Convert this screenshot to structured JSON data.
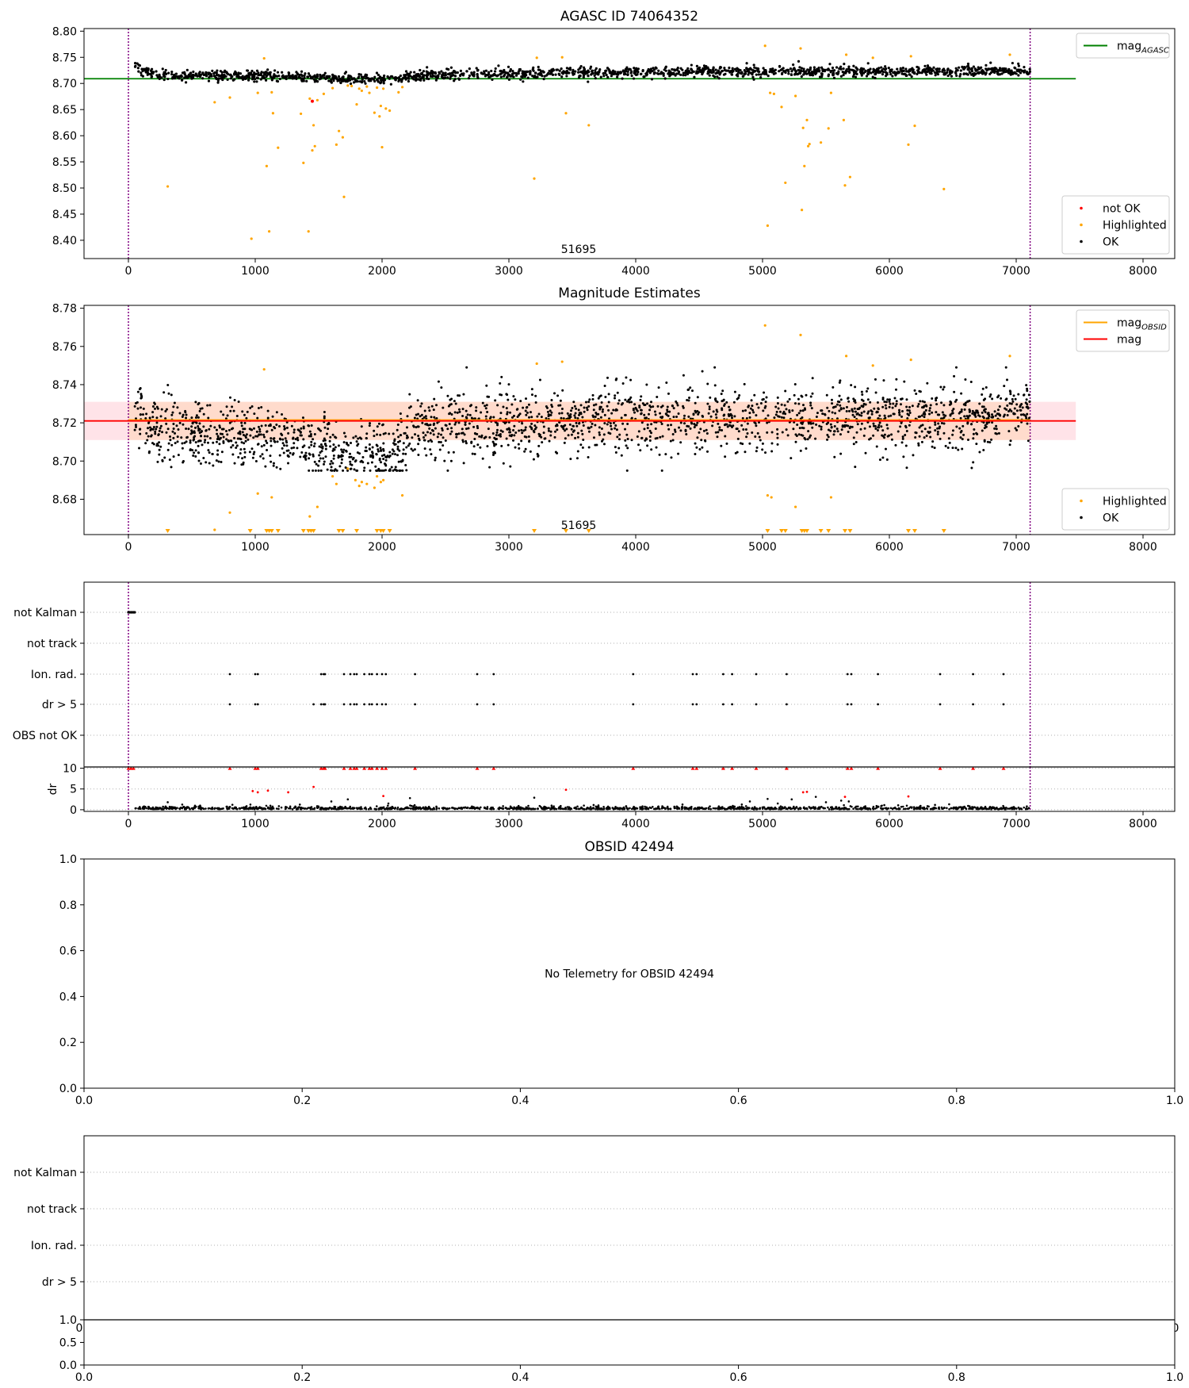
{
  "colors": {
    "ok": "#000000",
    "highlighted": "#ffa500",
    "not_ok": "#ff0000",
    "mag_agasc_line": "#008000",
    "mag_obsid_line": "#ffa500",
    "mag_line": "#ff0000",
    "band_pink": "#ffc0cb",
    "band_orange": "#ffcc99",
    "obs_boundary": "#800080",
    "grid": "#b0b0b0"
  },
  "chart_data": [
    {
      "id": "agasc-panel",
      "type": "scatter",
      "title": "AGASC ID 74064352",
      "xlim": [
        -350,
        8250
      ],
      "ylim": [
        8.365,
        8.805
      ],
      "xticks": [
        0,
        1000,
        2000,
        3000,
        4000,
        5000,
        6000,
        7000,
        8000
      ],
      "yticks": [
        8.4,
        8.45,
        8.5,
        8.55,
        8.6,
        8.65,
        8.7,
        8.75,
        8.8
      ],
      "ytick_decimals": 2,
      "obs_boundaries": [
        0,
        7110
      ],
      "annotation": "51695",
      "legends": [
        {
          "position": "top-right",
          "entries": [
            {
              "label": "mag",
              "sub": "AGASC",
              "color": "#008000",
              "kind": "line"
            }
          ]
        },
        {
          "position": "bottom-right",
          "entries": [
            {
              "label": "not OK",
              "color": "#ff0000",
              "kind": "point"
            },
            {
              "label": "Highlighted",
              "color": "#ffa500",
              "kind": "point"
            },
            {
              "label": "OK",
              "color": "#000000",
              "kind": "point"
            }
          ]
        }
      ],
      "mag_agasc": 8.709,
      "ok_trend": [
        [
          50,
          8.732
        ],
        [
          200,
          8.716
        ],
        [
          1000,
          8.715
        ],
        [
          1500,
          8.712
        ],
        [
          1800,
          8.708
        ],
        [
          2100,
          8.71
        ],
        [
          2400,
          8.717
        ],
        [
          3000,
          8.719
        ],
        [
          4000,
          8.722
        ],
        [
          5000,
          8.723
        ],
        [
          6000,
          8.723
        ],
        [
          7110,
          8.725
        ]
      ],
      "ok_scatter": 0.0085,
      "ok_count": 1700,
      "highlighted": [
        [
          310,
          8.503
        ],
        [
          680,
          8.664
        ],
        [
          800,
          8.673
        ],
        [
          970,
          8.403
        ],
        [
          1020,
          8.682
        ],
        [
          1070,
          8.748
        ],
        [
          1090,
          8.542
        ],
        [
          1110,
          8.417
        ],
        [
          1130,
          8.683
        ],
        [
          1140,
          8.643
        ],
        [
          1180,
          8.577
        ],
        [
          1360,
          8.642
        ],
        [
          1380,
          8.548
        ],
        [
          1420,
          8.417
        ],
        [
          1430,
          8.671
        ],
        [
          1450,
          8.572
        ],
        [
          1460,
          8.62
        ],
        [
          1470,
          8.58
        ],
        [
          1490,
          8.668
        ],
        [
          1540,
          8.68
        ],
        [
          1610,
          8.691
        ],
        [
          1640,
          8.583
        ],
        [
          1660,
          8.609
        ],
        [
          1690,
          8.597
        ],
        [
          1700,
          8.483
        ],
        [
          1730,
          8.696
        ],
        [
          1760,
          8.695
        ],
        [
          1800,
          8.66
        ],
        [
          1820,
          8.69
        ],
        [
          1840,
          8.686
        ],
        [
          1880,
          8.694
        ],
        [
          1900,
          8.682
        ],
        [
          1940,
          8.644
        ],
        [
          1960,
          8.692
        ],
        [
          1980,
          8.637
        ],
        [
          1990,
          8.657
        ],
        [
          2000,
          8.578
        ],
        [
          2010,
          8.69
        ],
        [
          2030,
          8.652
        ],
        [
          2060,
          8.648
        ],
        [
          2130,
          8.683
        ],
        [
          2160,
          8.693
        ],
        [
          3200,
          8.518
        ],
        [
          3220,
          8.749
        ],
        [
          3420,
          8.75
        ],
        [
          3450,
          8.643
        ],
        [
          3630,
          8.62
        ],
        [
          5020,
          8.772
        ],
        [
          5040,
          8.428
        ],
        [
          5060,
          8.682
        ],
        [
          5090,
          8.68
        ],
        [
          5150,
          8.655
        ],
        [
          5180,
          8.51
        ],
        [
          5260,
          8.676
        ],
        [
          5300,
          8.767
        ],
        [
          5310,
          8.458
        ],
        [
          5320,
          8.615
        ],
        [
          5330,
          8.542
        ],
        [
          5350,
          8.63
        ],
        [
          5360,
          8.58
        ],
        [
          5370,
          8.584
        ],
        [
          5460,
          8.587
        ],
        [
          5520,
          8.614
        ],
        [
          5540,
          8.682
        ],
        [
          5640,
          8.63
        ],
        [
          5650,
          8.505
        ],
        [
          5660,
          8.755
        ],
        [
          5690,
          8.521
        ],
        [
          5870,
          8.749
        ],
        [
          6150,
          8.583
        ],
        [
          6170,
          8.752
        ],
        [
          6200,
          8.619
        ],
        [
          6430,
          8.498
        ],
        [
          6950,
          8.755
        ]
      ],
      "not_ok": [
        [
          1450,
          8.666
        ]
      ]
    },
    {
      "id": "estimates-panel",
      "type": "scatter",
      "title": "Magnitude Estimates",
      "xlim": [
        -350,
        8250
      ],
      "ylim": [
        8.6615,
        8.7815
      ],
      "xticks": [
        0,
        1000,
        2000,
        3000,
        4000,
        5000,
        6000,
        7000,
        8000
      ],
      "yticks": [
        8.68,
        8.7,
        8.72,
        8.74,
        8.76,
        8.78
      ],
      "ytick_decimals": 2,
      "obs_boundaries": [
        0,
        7110
      ],
      "annotation": "51695",
      "legends": [
        {
          "position": "top-right",
          "entries": [
            {
              "label": "mag",
              "sub": "OBSID",
              "color": "#ffa500",
              "kind": "line"
            },
            {
              "label": "mag",
              "sub": "",
              "color": "#ff0000",
              "kind": "line"
            }
          ]
        },
        {
          "position": "bottom-right",
          "entries": [
            {
              "label": "Highlighted",
              "color": "#ffa500",
              "kind": "point"
            },
            {
              "label": "OK",
              "color": "#000000",
              "kind": "point"
            }
          ]
        }
      ],
      "mag": 8.721,
      "mag_band": [
        8.711,
        8.731
      ],
      "mag_obsid": 8.7215,
      "mag_obsid_band": [
        8.711,
        8.731
      ],
      "band_x": [
        -350,
        7470
      ],
      "ok_trend": [
        [
          50,
          8.728
        ],
        [
          200,
          8.716
        ],
        [
          1000,
          8.714
        ],
        [
          1500,
          8.709
        ],
        [
          1800,
          8.703
        ],
        [
          2100,
          8.703
        ],
        [
          2300,
          8.717
        ],
        [
          3000,
          8.719
        ],
        [
          4000,
          8.722
        ],
        [
          5000,
          8.722
        ],
        [
          6000,
          8.723
        ],
        [
          7110,
          8.725
        ]
      ],
      "ok_scatter": 0.0085,
      "ok_count": 2300,
      "highlighted": [
        [
          680,
          8.664
        ],
        [
          800,
          8.673
        ],
        [
          1020,
          8.683
        ],
        [
          1070,
          8.748
        ],
        [
          1130,
          8.681
        ],
        [
          1430,
          8.671
        ],
        [
          1490,
          8.676
        ],
        [
          1610,
          8.692
        ],
        [
          1640,
          8.688
        ],
        [
          1730,
          8.696
        ],
        [
          1790,
          8.69
        ],
        [
          1820,
          8.687
        ],
        [
          1840,
          8.689
        ],
        [
          1880,
          8.688
        ],
        [
          1940,
          8.686
        ],
        [
          1960,
          8.692
        ],
        [
          1990,
          8.689
        ],
        [
          2010,
          8.69
        ],
        [
          2160,
          8.682
        ],
        [
          3220,
          8.751
        ],
        [
          3420,
          8.752
        ],
        [
          5020,
          8.771
        ],
        [
          5040,
          8.682
        ],
        [
          5070,
          8.681
        ],
        [
          5260,
          8.676
        ],
        [
          5300,
          8.766
        ],
        [
          5540,
          8.681
        ],
        [
          5660,
          8.755
        ],
        [
          5870,
          8.75
        ],
        [
          6170,
          8.753
        ],
        [
          6950,
          8.755
        ]
      ],
      "below_limit": [
        310,
        960,
        1090,
        1110,
        1130,
        1180,
        1380,
        1420,
        1440,
        1460,
        1660,
        1690,
        1800,
        1960,
        1990,
        2010,
        2060,
        3200,
        3450,
        3630,
        5040,
        5150,
        5180,
        5310,
        5330,
        5350,
        5460,
        5520,
        5650,
        5690,
        6150,
        6200,
        6430
      ]
    },
    {
      "id": "flags-panel",
      "type": "scatter",
      "categories": [
        "not Kalman",
        "not track",
        "Ion. rad.",
        "dr > 5",
        "OBS not OK"
      ],
      "xlim": [
        -350,
        8250
      ],
      "obs_boundaries": [
        0,
        7110
      ],
      "not_kalman_x": [
        0,
        10,
        20,
        30,
        40,
        50
      ],
      "ion_rad_x": [
        800,
        1000,
        1020,
        1520,
        1540,
        1550,
        1700,
        1750,
        1780,
        1800,
        1860,
        1900,
        1920,
        1960,
        2000,
        2030,
        2260,
        2750,
        2880,
        3980,
        4450,
        4480,
        4690,
        4760,
        4950,
        5190,
        5670,
        5700,
        5910,
        6400,
        6660,
        6900
      ],
      "dr_gt5_x": [
        800,
        1000,
        1020,
        1460,
        1520,
        1540,
        1550,
        1700,
        1750,
        1780,
        1800,
        1860,
        1900,
        1920,
        1960,
        2000,
        2030,
        2260,
        2750,
        2880,
        3980,
        4450,
        4480,
        4690,
        4760,
        4950,
        5190,
        5670,
        5700,
        5910,
        6400,
        6660,
        6900
      ]
    },
    {
      "id": "dr-panel",
      "type": "scatter",
      "ylabel": "dr",
      "xlim": [
        -350,
        8250
      ],
      "ylim": [
        -0.4,
        10.3
      ],
      "xticks": [
        0,
        1000,
        2000,
        3000,
        4000,
        5000,
        6000,
        7000,
        8000
      ],
      "yticks": [
        0,
        5,
        10
      ],
      "obs_boundaries": [
        0,
        7110
      ],
      "clipped_x": [
        0,
        20,
        40,
        800,
        1000,
        1020,
        1520,
        1540,
        1550,
        1700,
        1750,
        1780,
        1800,
        1860,
        1900,
        1920,
        1960,
        2000,
        2030,
        2260,
        2750,
        2880,
        3980,
        4450,
        4480,
        4690,
        4760,
        4950,
        5190,
        5670,
        5700,
        5910,
        6400,
        6660,
        6900
      ],
      "red_points": [
        [
          980,
          4.5
        ],
        [
          1020,
          4.2
        ],
        [
          1100,
          4.6
        ],
        [
          1260,
          4.2
        ],
        [
          1460,
          5.5
        ],
        [
          2010,
          3.3
        ],
        [
          3450,
          4.8
        ],
        [
          5320,
          4.2
        ],
        [
          5350,
          4.3
        ],
        [
          5650,
          3.1
        ],
        [
          6150,
          3.2
        ]
      ],
      "black_points": [
        [
          310,
          1.8
        ],
        [
          820,
          1.2
        ],
        [
          1600,
          2.0
        ],
        [
          1730,
          2.5
        ],
        [
          2050,
          1.5
        ],
        [
          2220,
          2.8
        ],
        [
          3200,
          2.9
        ],
        [
          4900,
          2.0
        ],
        [
          5040,
          2.6
        ],
        [
          5120,
          1.5
        ],
        [
          5230,
          2.5
        ],
        [
          5420,
          3.1
        ],
        [
          5500,
          1.8
        ],
        [
          5620,
          2.2
        ],
        [
          5680,
          2.0
        ]
      ],
      "baseline_count": 1300
    },
    {
      "id": "obsid-panel",
      "type": "scatter",
      "title": "OBSID 42494",
      "message": "No Telemetry for OBSID 42494",
      "xlim": [
        0,
        1
      ],
      "ylim": [
        0,
        1
      ],
      "xticks": [
        0.0,
        0.2,
        0.4,
        0.6,
        0.8,
        1.0
      ],
      "yticks": [
        0.0,
        0.2,
        0.4,
        0.6,
        0.8,
        1.0
      ],
      "tick_decimals": 1
    },
    {
      "id": "obsid-flags-panel",
      "type": "scatter",
      "categories": [
        "not Kalman",
        "not track",
        "Ion. rad.",
        "dr > 5"
      ],
      "overlap_tick_left": "0",
      "overlap_tick_right": "0"
    },
    {
      "id": "obsid-dr-panel",
      "type": "scatter",
      "xlim": [
        0,
        1
      ],
      "ylim": [
        0,
        1
      ],
      "xticks": [
        0.0,
        0.2,
        0.4,
        0.6,
        0.8,
        1.0
      ],
      "yticks": [
        0.0,
        0.5,
        1.0
      ],
      "tick_decimals": 1
    }
  ]
}
